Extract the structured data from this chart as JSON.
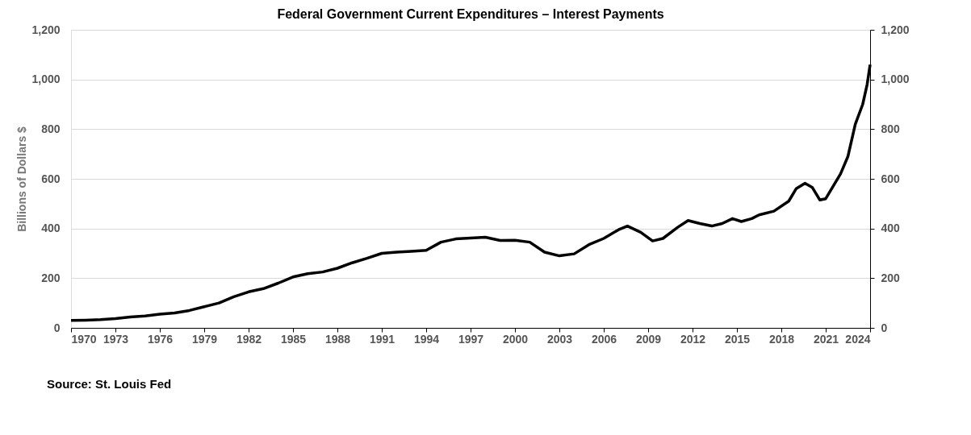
{
  "chart_data": {
    "type": "line",
    "title": "Federal Government Current Expenditures – Interest Payments",
    "ylabel": "Billions of Dollars $",
    "x": [
      1970,
      1971,
      1972,
      1973,
      1974,
      1975,
      1976,
      1977,
      1978,
      1979,
      1980,
      1981,
      1982,
      1983,
      1984,
      1985,
      1986,
      1987,
      1988,
      1989,
      1990,
      1991,
      1992,
      1993,
      1994,
      1995,
      1996,
      1997,
      1998,
      1999,
      2000,
      2001,
      2002,
      2003,
      2004,
      2005,
      2006,
      2007,
      2007.6,
      2008.5,
      2009.3,
      2010,
      2011,
      2011.7,
      2012.5,
      2013.3,
      2014,
      2014.7,
      2015.3,
      2016,
      2016.5,
      2017.5,
      2018.5,
      2019,
      2019.6,
      2020.1,
      2020.6,
      2021,
      2022,
      2022.5,
      2023,
      2023.5,
      2023.8,
      2024
    ],
    "series": [
      {
        "color": "#000000",
        "values": [
          30,
          31,
          33,
          37,
          44,
          48,
          55,
          60,
          70,
          85,
          100,
          125,
          145,
          158,
          180,
          205,
          218,
          225,
          240,
          262,
          280,
          300,
          305,
          308,
          312,
          345,
          358,
          362,
          365,
          352,
          353,
          345,
          305,
          290,
          298,
          335,
          360,
          395,
          410,
          385,
          350,
          360,
          405,
          432,
          420,
          410,
          420,
          440,
          428,
          440,
          455,
          470,
          510,
          560,
          582,
          565,
          515,
          520,
          620,
          690,
          820,
          900,
          980,
          1060
        ]
      }
    ],
    "xlim": [
      1970,
      2024
    ],
    "xticks": [
      1970,
      1973,
      1976,
      1979,
      1982,
      1985,
      1988,
      1991,
      1994,
      1997,
      2000,
      2003,
      2006,
      2009,
      2012,
      2015,
      2018,
      2021,
      2024
    ],
    "ylim": [
      0,
      1200
    ],
    "yticks": [
      {
        "value": 0,
        "label": "0"
      },
      {
        "value": 200,
        "label": "200"
      },
      {
        "value": 400,
        "label": "400"
      },
      {
        "value": 600,
        "label": "600"
      },
      {
        "value": 800,
        "label": "800"
      },
      {
        "value": 1000,
        "label": "1,000"
      },
      {
        "value": 1200,
        "label": "1,200"
      }
    ],
    "y2lim": [
      0,
      1200
    ],
    "y2ticks": [
      {
        "value": 0,
        "label": "0"
      },
      {
        "value": 200,
        "label": "200"
      },
      {
        "value": 400,
        "label": "400"
      },
      {
        "value": 600,
        "label": "600"
      },
      {
        "value": 800,
        "label": "800"
      },
      {
        "value": 1000,
        "label": "1,000"
      },
      {
        "value": 1200,
        "label": "1,200"
      }
    ],
    "grid": "y",
    "line_style": "solid",
    "marker": "none",
    "annotations": [
      "Source: St. Louis Fed"
    ]
  }
}
